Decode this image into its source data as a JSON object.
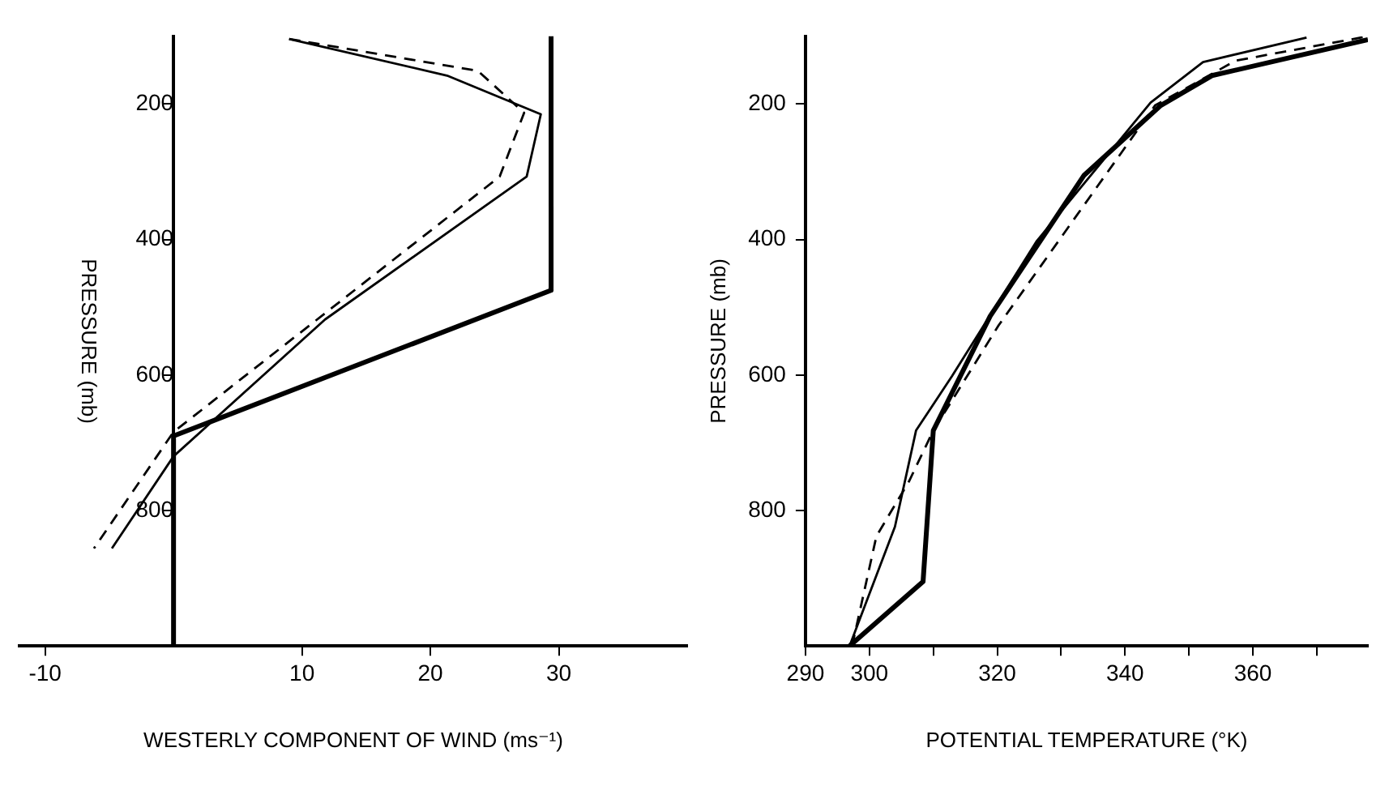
{
  "chart_data": [
    {
      "type": "line",
      "xlabel": "WESTERLY COMPONENT OF WIND (ms⁻¹)",
      "ylabel": "PRESSURE (mb)",
      "xlim": [
        -12,
        40
      ],
      "xticks": [
        -10,
        10,
        20,
        30
      ],
      "ylim": [
        1000,
        100
      ],
      "yticks": [
        200,
        400,
        600,
        800
      ],
      "line_style": "solid",
      "series": [
        {
          "color": "#000000",
          "x": [
            29.4,
            29.4,
            0,
            0
          ],
          "values": [
            100,
            475,
            690,
            1000
          ]
        },
        {
          "color": "#000000",
          "x": [
            9.0,
            21.3,
            28.6,
            27.5,
            11.8,
            0,
            -4.8
          ],
          "values": [
            104,
            158,
            215,
            307,
            518,
            720,
            856
          ]
        },
        {
          "color": "#000000",
          "line_style": "dashed",
          "x": [
            9.0,
            23.7,
            27.3,
            25.4,
            0,
            -6.2
          ],
          "values": [
            104,
            151,
            213,
            307,
            684,
            856
          ]
        }
      ]
    },
    {
      "type": "line",
      "xlabel": "POTENTIAL TEMPERATURE (°K)",
      "ylabel": "PRESSURE (mb)",
      "xlim": [
        290,
        378
      ],
      "xticks": [
        290,
        300,
        {
          "value": 310,
          "label": null
        },
        320,
        {
          "value": 330,
          "label": null
        },
        340,
        {
          "value": 350,
          "label": null
        },
        360,
        {
          "value": 370,
          "label": null
        }
      ],
      "ylim": [
        1000,
        100
      ],
      "yticks": [
        200,
        400,
        600,
        800
      ],
      "line_style": "solid",
      "series": [
        {
          "color": "#000000",
          "x": [
            296.9,
            308.4,
            310.0,
            318.9,
            333.6,
            345.6,
            353.6,
            378
          ],
          "values": [
            1000,
            905,
            682,
            513,
            305,
            202,
            158,
            105
          ]
        },
        {
          "color": "#000000",
          "x": [
            296.9,
            304.0,
            307.3,
            312.9,
            326.2,
            344.0,
            352.2,
            368.4
          ],
          "values": [
            1000,
            824,
            682,
            602,
            402,
            198,
            138,
            102
          ]
        },
        {
          "color": "#000000",
          "line_style": "dashed",
          "x": [
            297.3,
            301.1,
            306.2,
            310.0,
            320.2,
            333.6,
            344.7,
            357.3,
            378
          ],
          "values": [
            1000,
            838,
            757,
            682,
            527,
            349,
            202,
            136,
            100
          ]
        }
      ]
    }
  ]
}
